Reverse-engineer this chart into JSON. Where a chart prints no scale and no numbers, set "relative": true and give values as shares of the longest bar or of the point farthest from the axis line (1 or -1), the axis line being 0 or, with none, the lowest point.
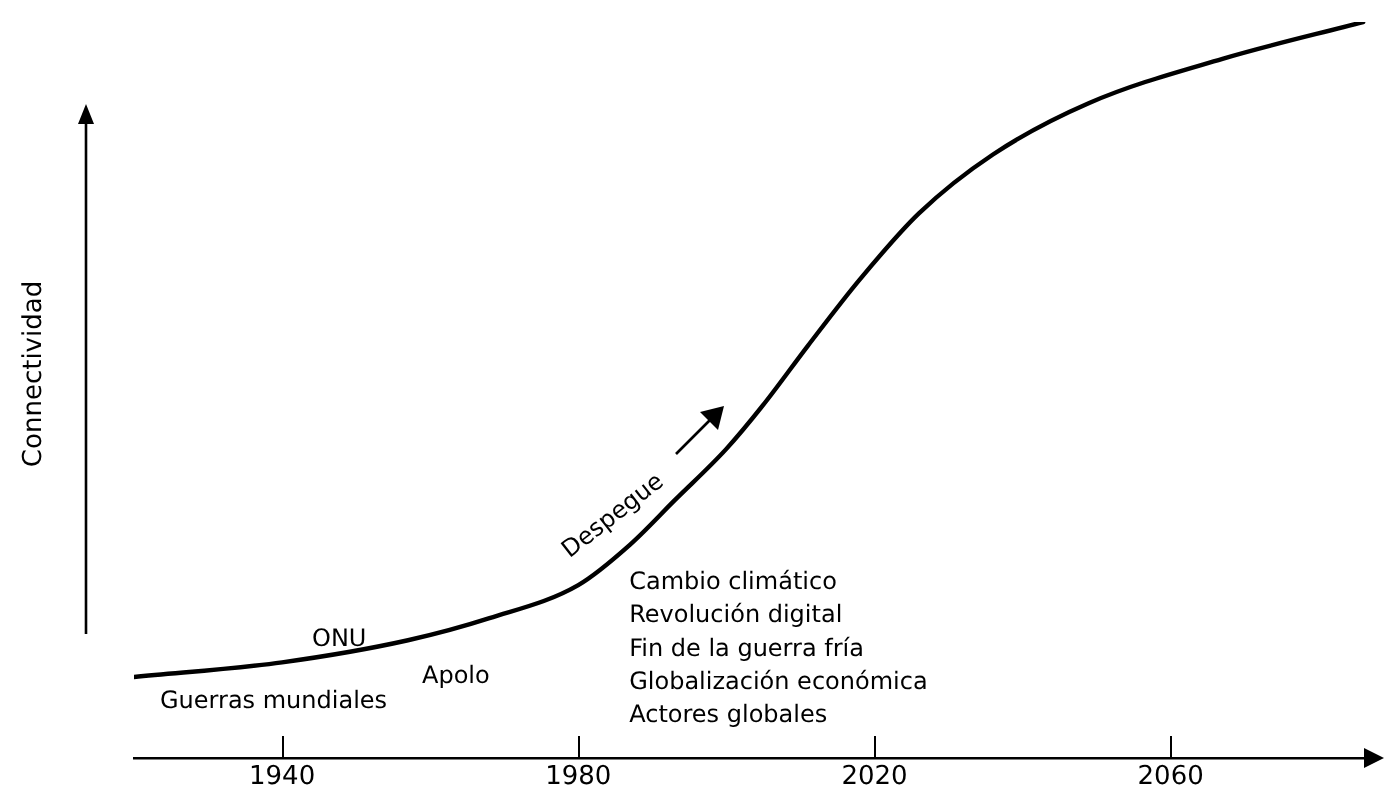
{
  "chart_data": {
    "type": "line",
    "relative": true,
    "ylabel": "Connectividad",
    "xlim": [
      1920,
      2088
    ],
    "xticks": [
      1940,
      1980,
      2020,
      2060
    ],
    "tick_labels": "x",
    "grid": false,
    "legend": false,
    "marker": "none",
    "line_style": "solid",
    "series": [
      {
        "color": "#000000",
        "x": [
          1920,
          1940,
          1957,
          1968,
          1980,
          1987,
          1993,
          2000,
          2005,
          2011,
          2018,
          2026,
          2036,
          2049,
          2067,
          2086
        ],
        "values": [
          0.11,
          0.13,
          0.16,
          0.19,
          0.235,
          0.29,
          0.35,
          0.42,
          0.48,
          0.56,
          0.65,
          0.74,
          0.82,
          0.89,
          0.95,
          1
        ]
      }
    ],
    "annotations": [
      "Guerras mundiales",
      "ONU",
      "Apolo",
      "Despegue",
      "Cambio climático",
      "Revolución digital",
      "Fin de la guerra fría",
      "Globalización económica",
      "Actores globales"
    ]
  }
}
